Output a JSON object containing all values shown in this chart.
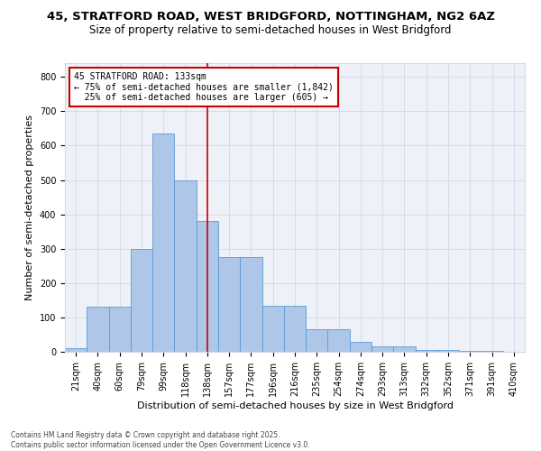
{
  "title_line1": "45, STRATFORD ROAD, WEST BRIDGFORD, NOTTINGHAM, NG2 6AZ",
  "title_line2": "Size of property relative to semi-detached houses in West Bridgford",
  "xlabel": "Distribution of semi-detached houses by size in West Bridgford",
  "ylabel": "Number of semi-detached properties",
  "footnote": "Contains HM Land Registry data © Crown copyright and database right 2025.\nContains public sector information licensed under the Open Government Licence v3.0.",
  "bin_labels": [
    "21sqm",
    "40sqm",
    "60sqm",
    "79sqm",
    "99sqm",
    "118sqm",
    "138sqm",
    "157sqm",
    "177sqm",
    "196sqm",
    "216sqm",
    "235sqm",
    "254sqm",
    "274sqm",
    "293sqm",
    "313sqm",
    "332sqm",
    "352sqm",
    "371sqm",
    "391sqm",
    "410sqm"
  ],
  "bar_heights": [
    10,
    130,
    130,
    300,
    635,
    500,
    380,
    275,
    275,
    135,
    135,
    65,
    65,
    30,
    15,
    15,
    5,
    5,
    2,
    2,
    0
  ],
  "bar_color": "#aec6e8",
  "bar_edge_color": "#5b9bd5",
  "vline_bin_index": 6,
  "annotation_text": "45 STRATFORD ROAD: 133sqm\n← 75% of semi-detached houses are smaller (1,842)\n  25% of semi-detached houses are larger (605) →",
  "annotation_box_color": "#ffffff",
  "annotation_box_edge_color": "#cc0000",
  "vline_color": "#cc0000",
  "ylim": [
    0,
    840
  ],
  "yticks": [
    0,
    100,
    200,
    300,
    400,
    500,
    600,
    700,
    800
  ],
  "grid_color": "#d0d8e8",
  "bg_color": "#eef2f8",
  "title_fontsize": 9.5,
  "subtitle_fontsize": 8.5,
  "axis_label_fontsize": 8,
  "tick_fontsize": 7,
  "annot_fontsize": 7,
  "footnote_fontsize": 5.5
}
